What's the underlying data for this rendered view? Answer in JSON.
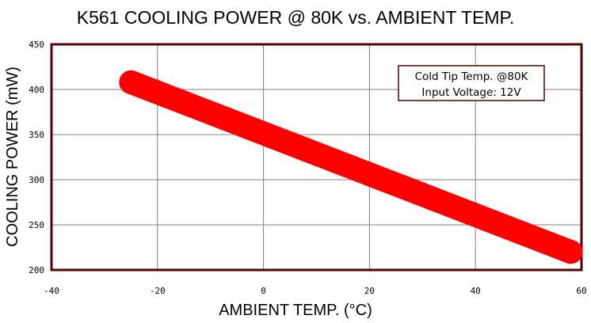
{
  "chart_data": {
    "type": "line",
    "title": "K561 COOLING POWER @ 80K vs. AMBIENT TEMP.",
    "xlabel": "AMBIENT TEMP. (°C)",
    "ylabel": "COOLING POWER (mW)",
    "xlim": [
      -40,
      60
    ],
    "ylim": [
      200,
      450
    ],
    "xticks": [
      -40,
      -20,
      0,
      20,
      40,
      60
    ],
    "yticks": [
      200,
      250,
      300,
      350,
      400,
      450
    ],
    "xtick_labels": [
      "-40",
      "-20",
      "0",
      "20",
      "40",
      "60"
    ],
    "ytick_labels": [
      "200",
      "250",
      "300",
      "350",
      "400",
      "450"
    ],
    "grid": true,
    "series": [
      {
        "x": [
          -25,
          58
        ],
        "y": [
          408,
          220
        ],
        "color": "#ff0000"
      }
    ],
    "annotation": {
      "lines": [
        "Cold Tip Temp. @80K",
        "Input Voltage: 12V"
      ],
      "placement": "top-right"
    },
    "colors": {
      "frame": "#5a0000",
      "grid": "#808080",
      "series": "#ff0000"
    }
  }
}
